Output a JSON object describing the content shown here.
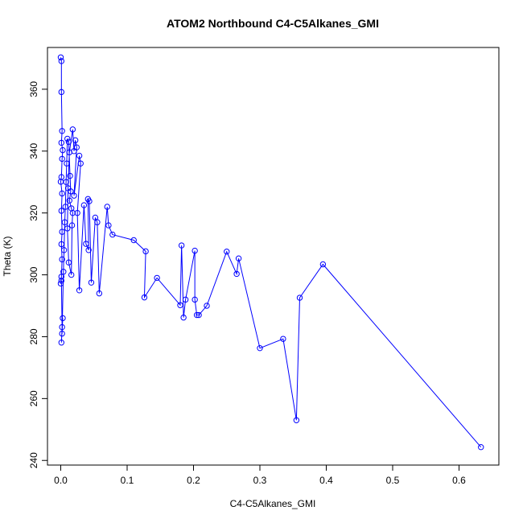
{
  "chart_data": {
    "type": "line",
    "title": "ATOM2 Northbound C4-C5Alkanes_GMI",
    "xlabel": "C4-C5Alkanes_GMI",
    "ylabel": "Theta (K)",
    "xlim": [
      -0.02,
      0.66
    ],
    "ylim": [
      238.5,
      373.5
    ],
    "x_ticks": [
      0.0,
      0.1,
      0.2,
      0.3,
      0.4,
      0.5,
      0.6
    ],
    "x_tick_labels": [
      "0.0",
      "0.1",
      "0.2",
      "0.3",
      "0.4",
      "0.5",
      "0.6"
    ],
    "y_ticks": [
      240,
      260,
      280,
      300,
      320,
      340,
      360
    ],
    "y_tick_labels": [
      "240",
      "260",
      "280",
      "300",
      "320",
      "340",
      "360"
    ],
    "grid": false,
    "series": [
      {
        "color": "#0000ff",
        "marker": "open-circle",
        "points": [
          [
            0.0,
            370.3
          ],
          [
            0.001,
            369.1
          ],
          [
            0.001,
            359.1
          ],
          [
            0.002,
            346.5
          ],
          [
            0.001,
            342.7
          ],
          [
            0.003,
            340.3
          ],
          [
            0.002,
            337.5
          ],
          [
            0.001,
            331.6
          ],
          [
            0.0,
            330.1
          ],
          [
            0.002,
            326.3
          ],
          [
            0.001,
            320.7
          ],
          [
            0.002,
            313.9
          ],
          [
            0.001,
            309.9
          ],
          [
            0.002,
            305.0
          ],
          [
            0.001,
            299.4
          ],
          [
            0.0,
            297.2
          ],
          [
            0.001,
            298.1
          ],
          [
            0.002,
            283.1
          ],
          [
            0.001,
            278.1
          ],
          [
            0.003,
            286.0
          ],
          [
            0.002,
            281.0
          ],
          [
            0.004,
            301.0
          ],
          [
            0.005,
            308.0
          ],
          [
            0.006,
            317.0
          ],
          [
            0.007,
            322.0
          ],
          [
            0.008,
            330.0
          ],
          [
            0.009,
            336.0
          ],
          [
            0.01,
            344.0
          ],
          [
            0.012,
            343.0
          ],
          [
            0.014,
            332.0
          ],
          [
            0.015,
            327.0
          ],
          [
            0.013,
            324.0
          ],
          [
            0.016,
            321.5
          ],
          [
            0.018,
            320.0
          ],
          [
            0.017,
            316.0
          ],
          [
            0.016,
            300.0
          ],
          [
            0.012,
            304.0
          ],
          [
            0.01,
            315.0
          ],
          [
            0.011,
            328.0
          ],
          [
            0.013,
            339.6
          ],
          [
            0.018,
            347.0
          ],
          [
            0.02,
            340.0
          ],
          [
            0.022,
            343.5
          ],
          [
            0.024,
            341.2
          ],
          [
            0.02,
            325.6
          ],
          [
            0.028,
            338.5
          ],
          [
            0.03,
            336.0
          ],
          [
            0.025,
            320.0
          ],
          [
            0.028,
            295.0
          ],
          [
            0.035,
            322.5
          ],
          [
            0.038,
            310.0
          ],
          [
            0.042,
            308.0
          ],
          [
            0.041,
            324.5
          ],
          [
            0.043,
            323.8
          ],
          [
            0.046,
            297.5
          ],
          [
            0.052,
            318.5
          ],
          [
            0.055,
            317.0
          ],
          [
            0.058,
            294.0
          ],
          [
            0.07,
            322.0
          ],
          [
            0.072,
            316.0
          ],
          [
            0.078,
            313.0
          ],
          [
            0.11,
            311.2
          ],
          [
            0.128,
            307.6
          ],
          [
            0.126,
            292.7
          ],
          [
            0.145,
            299.0
          ],
          [
            0.18,
            290.2
          ],
          [
            0.182,
            309.5
          ],
          [
            0.185,
            286.2
          ],
          [
            0.188,
            292.0
          ],
          [
            0.202,
            307.8
          ],
          [
            0.202,
            292.0
          ],
          [
            0.205,
            287.0
          ],
          [
            0.208,
            287.0
          ],
          [
            0.22,
            290.0
          ],
          [
            0.25,
            307.5
          ],
          [
            0.265,
            300.3
          ],
          [
            0.268,
            305.3
          ],
          [
            0.3,
            276.3
          ],
          [
            0.335,
            279.3
          ],
          [
            0.355,
            253.0
          ],
          [
            0.36,
            292.6
          ],
          [
            0.395,
            303.4
          ],
          [
            0.633,
            244.3
          ]
        ]
      }
    ]
  }
}
